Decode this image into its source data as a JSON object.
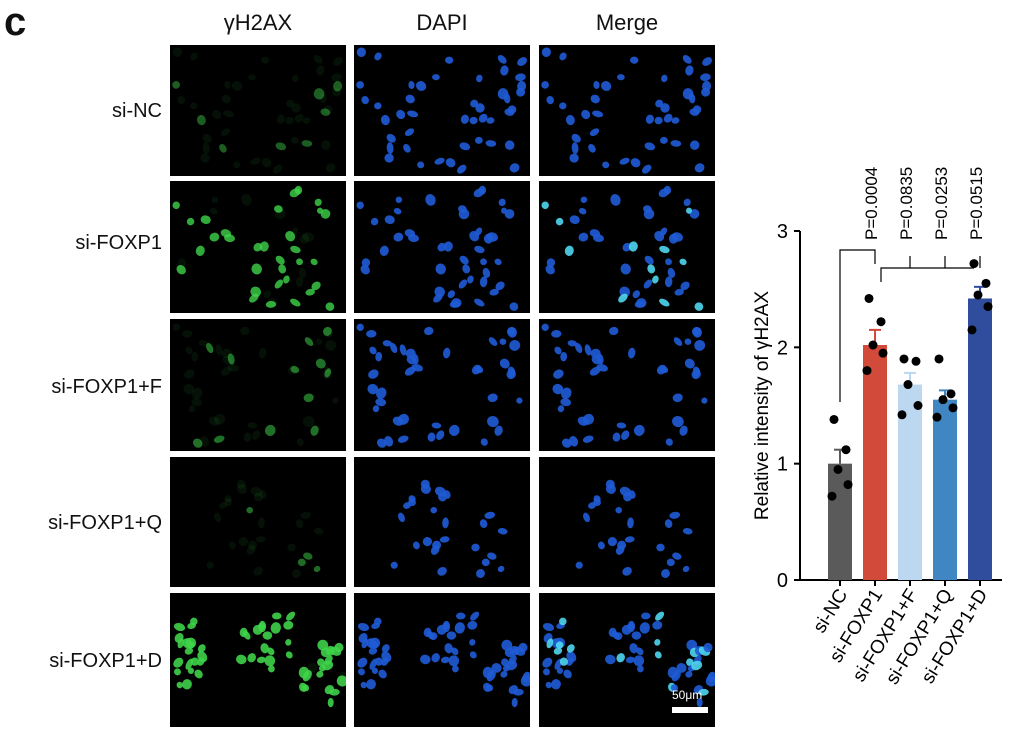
{
  "figure": {
    "panel_letter": "c",
    "columns": [
      "γH2AX",
      "DAPI",
      "Merge"
    ],
    "rows": [
      "si-NC",
      "si-FOXP1",
      "si-FOXP1+F",
      "si-FOXP1+Q",
      "si-FOXP1+D"
    ],
    "scale_bar_label": "50μm",
    "colors": {
      "gamma": "#3fd44a",
      "dapi": "#1f5bd6",
      "merge_bright": "#4fd6f0"
    }
  },
  "chart_data": {
    "type": "bar",
    "title": "",
    "xlabel": "",
    "ylabel": "Relative intensity of γH2AX",
    "ylim": [
      0,
      3
    ],
    "yticks": [
      "0",
      "1",
      "2",
      "3"
    ],
    "categories": [
      "si-NC",
      "si-FOXP1",
      "si-FOXP1+F",
      "si-FOXP1+Q",
      "si-FOXP1+D"
    ],
    "values": [
      1.0,
      2.02,
      1.68,
      1.55,
      2.42
    ],
    "errors": [
      0.12,
      0.13,
      0.1,
      0.08,
      0.1
    ],
    "colors": [
      "#5a5a5a",
      "#d24a3a",
      "#bcd8f0",
      "#3f86c2",
      "#2f4d9c"
    ],
    "points": [
      [
        1.38,
        1.12,
        0.95,
        0.82,
        0.72
      ],
      [
        2.42,
        2.22,
        2.02,
        1.95,
        1.8
      ],
      [
        1.9,
        1.88,
        1.68,
        1.5,
        1.42
      ],
      [
        1.9,
        1.6,
        1.55,
        1.48,
        1.4
      ],
      [
        2.72,
        2.55,
        2.45,
        2.35,
        2.15
      ]
    ],
    "annotations": [
      "P=0.0004",
      "P=0.0835",
      "P=0.0253",
      "P=0.0515"
    ]
  }
}
